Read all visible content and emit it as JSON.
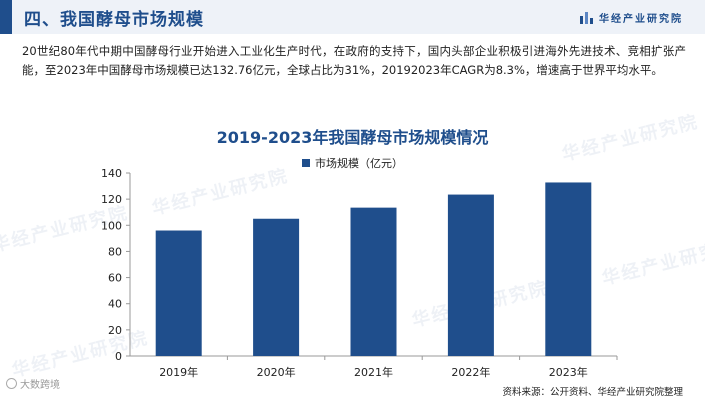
{
  "header": {
    "section_title": "四、我国酵母市场规模",
    "brand": "华经产业研究院"
  },
  "intro_text": "20世纪80年代中期中国酵母行业开始进入工业化生产时代，在政府的支持下，国内头部企业积极引进海外先进技术、竞相扩张产能，至2023年中国酵母市场规模已达132.76亿元，全球占比为31%，20192023年CAGR为8.3%，增速高于世界平均水平。",
  "watermarks": {
    "text": "华经产业研究院",
    "corner_badge": "大数跨境"
  },
  "source": "资料来源：公开资料、华经产业研究院整理",
  "colors": {
    "bar": "#1f4e8c",
    "title": "#1f4e8c",
    "axis": "#999999"
  },
  "chart_data": {
    "type": "bar",
    "title": "2019-2023年我国酵母市场规模情况",
    "categories": [
      "2019年",
      "2020年",
      "2021年",
      "2022年",
      "2023年"
    ],
    "series": [
      {
        "name": "市场规模（亿元）",
        "values": [
          96,
          105,
          113.5,
          123.5,
          132.76
        ]
      }
    ],
    "yticks": [
      0,
      20,
      40,
      60,
      80,
      100,
      120,
      140
    ],
    "ylim": [
      0,
      140
    ],
    "grid": false,
    "legend": "top-center"
  }
}
